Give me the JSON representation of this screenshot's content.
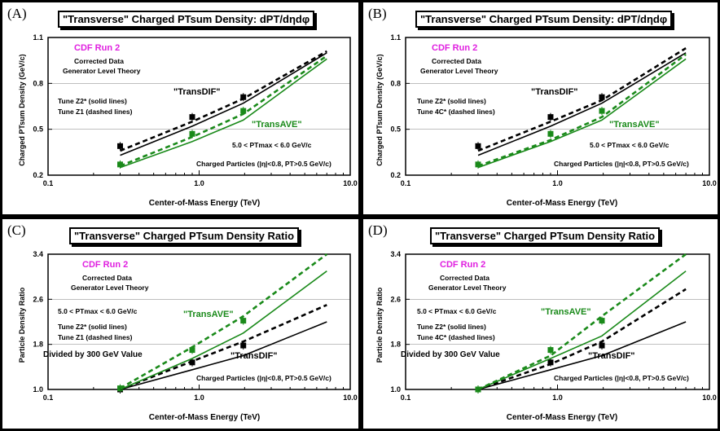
{
  "colors": {
    "green": "#1a8a1a",
    "black": "#000000",
    "cdf": "#e020e0"
  },
  "chart_data": [
    {
      "type": "line",
      "label": "(A)",
      "title": "\"Transverse\" Charged PTsum Density: dPT/dηdφ",
      "xlabel": "Center-of-Mass Energy  (TeV)",
      "ylabel": "Charged PTsum Density (GeV/c)",
      "xscale": "log",
      "xlim": [
        0.1,
        10.0
      ],
      "ylim": [
        0.2,
        1.1
      ],
      "xticks": [
        "0.1",
        "1.0",
        "10.0"
      ],
      "yticks": [
        "0.2",
        "0.5",
        "0.8",
        "1.1"
      ],
      "annotations": {
        "cdf": "CDF Run 2",
        "corrected": "Corrected Data",
        "generator": "Generator Level Theory",
        "tune_solid": "Tune Z2* (solid lines)",
        "tune_dashed": "Tune Z1 (dashed lines)",
        "ptmax": "5.0 < PTmax < 6.0 GeV/c",
        "charged": "Charged Particles (|η|<0.8, PT>0.5 GeV/c)",
        "transdif": "\"TransDIF\"",
        "transave": "\"TransAVE\"",
        "divided": ""
      },
      "series": [
        {
          "name": "TransDIF data",
          "color": "#000000",
          "style": "points",
          "x": [
            0.3,
            0.9,
            1.96
          ],
          "y": [
            0.39,
            0.58,
            0.71
          ]
        },
        {
          "name": "TransAVE data",
          "color": "#1a8a1a",
          "style": "points",
          "x": [
            0.3,
            0.9,
            1.96
          ],
          "y": [
            0.27,
            0.47,
            0.62
          ]
        },
        {
          "name": "TransDIF Z2*",
          "color": "#000000",
          "style": "solid",
          "x": [
            0.3,
            0.9,
            1.96,
            7.0
          ],
          "y": [
            0.33,
            0.52,
            0.67,
            1.0
          ]
        },
        {
          "name": "TransDIF Z1",
          "color": "#000000",
          "style": "dashed",
          "x": [
            0.3,
            0.9,
            1.96,
            7.0
          ],
          "y": [
            0.36,
            0.55,
            0.7,
            1.01
          ]
        },
        {
          "name": "TransAVE Z2*",
          "color": "#1a8a1a",
          "style": "solid",
          "x": [
            0.3,
            0.9,
            1.96,
            7.0
          ],
          "y": [
            0.25,
            0.42,
            0.56,
            0.96
          ]
        },
        {
          "name": "TransAVE Z1",
          "color": "#1a8a1a",
          "style": "dashed",
          "x": [
            0.3,
            0.9,
            1.96,
            7.0
          ],
          "y": [
            0.26,
            0.45,
            0.6,
            0.98
          ]
        }
      ]
    },
    {
      "type": "line",
      "label": "(B)",
      "title": "\"Transverse\" Charged PTsum Density: dPT/dηdφ",
      "xlabel": "Center-of-Mass Energy  (TeV)",
      "ylabel": "Charged PTsum Density (GeV/c)",
      "xscale": "log",
      "xlim": [
        0.1,
        10.0
      ],
      "ylim": [
        0.2,
        1.1
      ],
      "xticks": [
        "0.1",
        "1.0",
        "10.0"
      ],
      "yticks": [
        "0.2",
        "0.5",
        "0.8",
        "1.1"
      ],
      "annotations": {
        "cdf": "CDF Run 2",
        "corrected": "Corrected Data",
        "generator": "Generator Level Theory",
        "tune_solid": "Tune Z2* (solid lines)",
        "tune_dashed": "Tune 4C* (dashed lines)",
        "ptmax": "5.0 < PTmax < 6.0 GeV/c",
        "charged": "Charged Particles (|η|<0.8, PT>0.5 GeV/c)",
        "transdif": "\"TransDIF\"",
        "transave": "\"TransAVE\"",
        "divided": ""
      },
      "series": [
        {
          "name": "TransDIF data",
          "color": "#000000",
          "style": "points",
          "x": [
            0.3,
            0.9,
            1.96
          ],
          "y": [
            0.39,
            0.58,
            0.71
          ]
        },
        {
          "name": "TransAVE data",
          "color": "#1a8a1a",
          "style": "points",
          "x": [
            0.3,
            0.9,
            1.96
          ],
          "y": [
            0.27,
            0.47,
            0.62
          ]
        },
        {
          "name": "TransDIF Z2*",
          "color": "#000000",
          "style": "solid",
          "x": [
            0.3,
            0.9,
            1.96,
            7.0
          ],
          "y": [
            0.33,
            0.52,
            0.67,
            1.0
          ]
        },
        {
          "name": "TransDIF 4C*",
          "color": "#000000",
          "style": "dashed",
          "x": [
            0.3,
            0.9,
            1.96,
            7.0
          ],
          "y": [
            0.36,
            0.55,
            0.69,
            1.03
          ]
        },
        {
          "name": "TransAVE Z2*",
          "color": "#1a8a1a",
          "style": "solid",
          "x": [
            0.3,
            0.9,
            1.96,
            7.0
          ],
          "y": [
            0.25,
            0.42,
            0.56,
            0.96
          ]
        },
        {
          "name": "TransAVE 4C*",
          "color": "#1a8a1a",
          "style": "dashed",
          "x": [
            0.3,
            0.9,
            1.96,
            7.0
          ],
          "y": [
            0.26,
            0.43,
            0.58,
            0.99
          ]
        }
      ]
    },
    {
      "type": "line",
      "label": "(C)",
      "title": "\"Transverse\" Charged PTsum Density Ratio",
      "xlabel": "Center-of-Mass Energy  (TeV)",
      "ylabel": "Particle Density Ratio",
      "xscale": "log",
      "xlim": [
        0.1,
        10.0
      ],
      "ylim": [
        1.0,
        3.4
      ],
      "xticks": [
        "0.1",
        "1.0",
        "10.0"
      ],
      "yticks": [
        "1.0",
        "1.8",
        "2.6",
        "3.4"
      ],
      "annotations": {
        "cdf": "CDF Run 2",
        "corrected": "Corrected Data",
        "generator": "Generator Level Theory",
        "tune_solid": "Tune Z2* (solid lines)",
        "tune_dashed": "Tune Z1 (dashed lines)",
        "ptmax": "5.0 < PTmax < 6.0 GeV/c",
        "charged": "Charged Particles (|η|<0.8, PT>0.5 GeV/c)",
        "transdif": "\"TransDIF\"",
        "transave": "\"TransAVE\"",
        "divided": "Divided by 300 GeV Value"
      },
      "series": [
        {
          "name": "TransDIF data",
          "color": "#000000",
          "style": "points",
          "x": [
            0.3,
            0.9,
            1.96
          ],
          "y": [
            1.0,
            1.48,
            1.78
          ]
        },
        {
          "name": "TransAVE data",
          "color": "#1a8a1a",
          "style": "points",
          "x": [
            0.3,
            0.9,
            1.96
          ],
          "y": [
            1.02,
            1.7,
            2.22
          ]
        },
        {
          "name": "TransDIF Z2*",
          "color": "#000000",
          "style": "solid",
          "x": [
            0.3,
            0.9,
            1.96,
            7.0
          ],
          "y": [
            1.0,
            1.35,
            1.6,
            2.2
          ]
        },
        {
          "name": "TransDIF Z1",
          "color": "#000000",
          "style": "dashed",
          "x": [
            0.3,
            0.9,
            1.96,
            7.0
          ],
          "y": [
            1.0,
            1.5,
            1.85,
            2.5
          ]
        },
        {
          "name": "TransAVE Z2*",
          "color": "#1a8a1a",
          "style": "solid",
          "x": [
            0.3,
            0.9,
            1.96,
            7.0
          ],
          "y": [
            1.0,
            1.55,
            2.0,
            3.1
          ]
        },
        {
          "name": "TransAVE Z1",
          "color": "#1a8a1a",
          "style": "dashed",
          "x": [
            0.3,
            0.9,
            1.96,
            7.0
          ],
          "y": [
            1.02,
            1.75,
            2.3,
            3.4
          ]
        }
      ]
    },
    {
      "type": "line",
      "label": "(D)",
      "title": "\"Transverse\" Charged PTsum Density Ratio",
      "xlabel": "Center-of-Mass Energy  (TeV)",
      "ylabel": "Particle Density Ratio",
      "xscale": "log",
      "xlim": [
        0.1,
        10.0
      ],
      "ylim": [
        1.0,
        3.4
      ],
      "xticks": [
        "0.1",
        "1.0",
        "10.0"
      ],
      "yticks": [
        "1.0",
        "1.8",
        "2.6",
        "3.4"
      ],
      "annotations": {
        "cdf": "CDF Run 2",
        "corrected": "Corrected Data",
        "generator": "Generator Level Theory",
        "tune_solid": "Tune Z2* (solid lines)",
        "tune_dashed": "Tune 4C* (dashed lines)",
        "ptmax": "5.0 < PTmax < 6.0 GeV/c",
        "charged": "Charged Particles (|η|<0.8, PT>0.5 GeV/c)",
        "transdif": "\"TransDIF\"",
        "transave": "\"TransAVE\"",
        "divided": "Divided by 300 GeV Value"
      },
      "series": [
        {
          "name": "TransDIF data",
          "color": "#000000",
          "style": "points",
          "x": [
            0.3,
            0.9,
            1.96
          ],
          "y": [
            1.0,
            1.48,
            1.78
          ]
        },
        {
          "name": "TransAVE data",
          "color": "#1a8a1a",
          "style": "points",
          "x": [
            0.3,
            0.9,
            1.96
          ],
          "y": [
            1.0,
            1.7,
            2.22
          ]
        },
        {
          "name": "TransDIF Z2*",
          "color": "#000000",
          "style": "solid",
          "x": [
            0.3,
            0.9,
            1.96,
            7.0
          ],
          "y": [
            1.0,
            1.35,
            1.6,
            2.2
          ]
        },
        {
          "name": "TransDIF 4C*",
          "color": "#000000",
          "style": "dashed",
          "x": [
            0.3,
            0.9,
            1.96,
            7.0
          ],
          "y": [
            1.0,
            1.45,
            1.85,
            2.78
          ]
        },
        {
          "name": "TransAVE Z2*",
          "color": "#1a8a1a",
          "style": "solid",
          "x": [
            0.3,
            0.9,
            1.96,
            7.0
          ],
          "y": [
            1.0,
            1.55,
            1.95,
            3.1
          ]
        },
        {
          "name": "TransAVE 4C*",
          "color": "#1a8a1a",
          "style": "dashed",
          "x": [
            0.3,
            0.9,
            1.96,
            7.0
          ],
          "y": [
            1.0,
            1.6,
            2.3,
            3.4
          ]
        }
      ]
    }
  ]
}
